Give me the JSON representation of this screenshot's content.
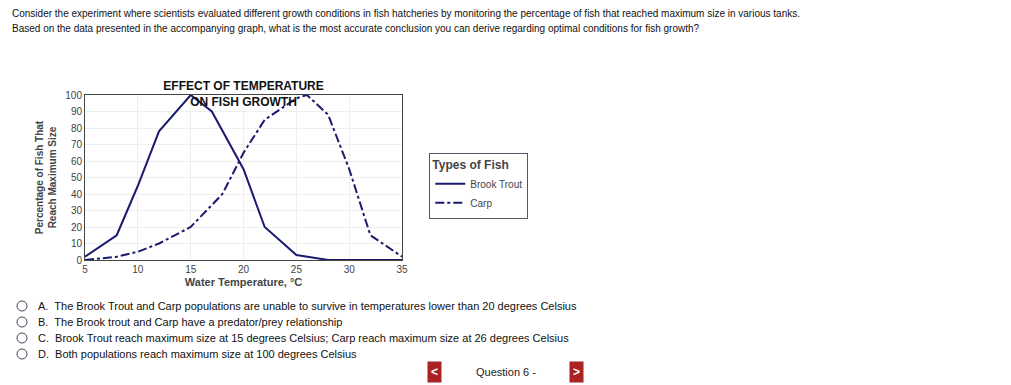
{
  "chart_data": {
    "type": "line",
    "title": "EFFECT OF TEMPERATURE\nON FISH GROWTH",
    "x_label": "Water Temperature, °C",
    "y_label": "Percentage of Fish That\nReach Maximum Size",
    "series": [
      {
        "name": "Brook Trout",
        "color": "#1a1a6e",
        "line_style": "solid",
        "x": [
          5,
          8,
          10,
          12,
          15,
          17,
          20,
          22,
          25,
          28,
          30,
          32,
          35
        ],
        "values": [
          2,
          15,
          45,
          78,
          100,
          90,
          55,
          20,
          3,
          0,
          0,
          0,
          0
        ]
      },
      {
        "name": "Carp",
        "color": "#1a1a6e",
        "line_style": "dashdot",
        "x": [
          5,
          8,
          10,
          12,
          15,
          18,
          20,
          22,
          25,
          26,
          28,
          30,
          32,
          35
        ],
        "values": [
          0,
          2,
          5,
          10,
          20,
          40,
          65,
          85,
          98,
          100,
          88,
          55,
          15,
          2
        ]
      }
    ],
    "xlim": [
      5,
      35
    ],
    "xticks": [
      5,
      10,
      15,
      20,
      25,
      30,
      35
    ],
    "ylim": [
      0,
      100
    ],
    "yticks": [
      0,
      10,
      20,
      30,
      40,
      50,
      60,
      70,
      80,
      90,
      100
    ],
    "grid": true,
    "legend": "right",
    "legend_title": "Types of Fish",
    "annotations": [
      "Consider the experiment where scientists evaluated different growth conditions in fish hatcheries by monitoring the percentage of fish that reached maximum size in various tanks.",
      "Based on the data presented in the accompanying graph, what is the most accurate conclusion you can derive regarding optimal conditions for fish growth?",
      "A.  The Brook Trout and Carp populations are unable to survive in temperatures lower than 20 degrees Celsius",
      "B.  The Brook trout and Carp have a predator/prey relationship",
      "C.  Brook Trout reach maximum size at 15 degrees Celsius; Carp reach maximum size at 26 degrees Celsius",
      "D.  Both populations reach maximum size at 100 degrees Celsius",
      "<",
      "Question 6 -",
      ">"
    ]
  }
}
